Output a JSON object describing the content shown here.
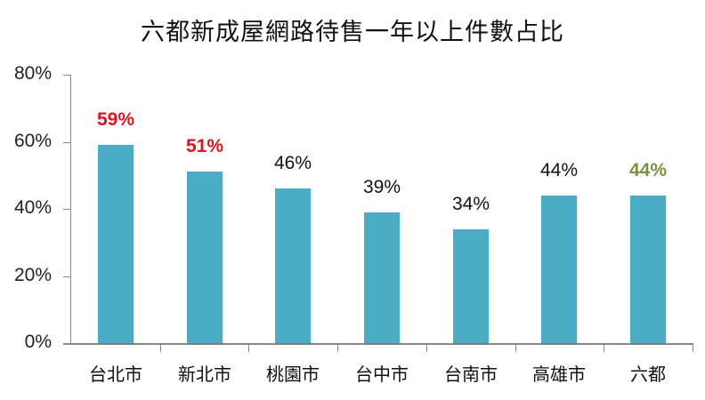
{
  "chart_data": {
    "type": "bar",
    "title": "六都新成屋網路待售一年以上件數占比",
    "categories": [
      "台北市",
      "新北市",
      "桃園市",
      "台中市",
      "台南市",
      "高雄市",
      "六都"
    ],
    "values": [
      59,
      51,
      46,
      39,
      34,
      44,
      44
    ],
    "value_labels": [
      "59%",
      "51%",
      "46%",
      "39%",
      "34%",
      "44%",
      "44%"
    ],
    "label_colors": [
      "#D9171E",
      "#D9171E",
      "#111111",
      "#111111",
      "#111111",
      "#111111",
      "#77933C"
    ],
    "bar_color": "#4BACC6",
    "xlabel": "",
    "ylabel": "",
    "ylim": [
      0,
      80
    ],
    "yticks": [
      "0%",
      "20%",
      "40%",
      "60%",
      "80%"
    ],
    "grid": false,
    "legend": null
  }
}
